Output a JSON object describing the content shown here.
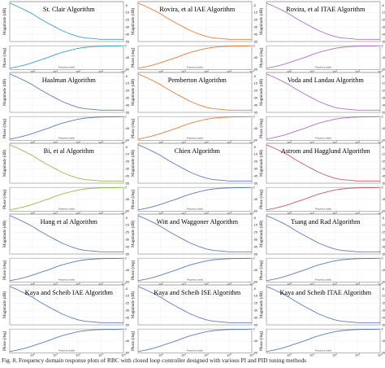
{
  "caption": "Fig. 8. Frequency domain response plots of RBC with closed loop controller designed with various PI and PID tuning methods",
  "common": {
    "mag_ylabel": "Magnitude (dB)",
    "phase_ylabel": "Phase (deg)",
    "xlabel": "Frequency (rad/s)"
  },
  "chart_data": [
    {
      "type": "line",
      "title": "St. Clair Algorithm",
      "color": "#3aa0d8",
      "x": [
        0.1,
        0.2,
        0.5,
        1,
        2,
        5,
        10,
        20,
        50,
        100,
        200,
        500,
        1000,
        2000,
        5000,
        10000
      ],
      "mag_db": [
        -2,
        -6,
        -12,
        -17,
        -23,
        -30,
        -35,
        -40,
        -45,
        -48,
        -50,
        -51,
        -52,
        -52,
        -52,
        -52
      ],
      "phase_deg": [
        -85,
        -80,
        -72,
        -64,
        -55,
        -44,
        -34,
        -25,
        -16,
        -10,
        -6,
        -3,
        -2,
        -1,
        -1,
        0
      ],
      "mag_ylim": [
        -55,
        0
      ],
      "phase_ylim": [
        -90,
        0
      ],
      "xlim": [
        0.1,
        10000
      ]
    },
    {
      "type": "line",
      "title": "Rovira, et al IAE Algorithm",
      "color": "#f07a3a",
      "x": [
        0.1,
        0.2,
        0.5,
        1,
        2,
        5,
        10,
        20,
        50,
        100,
        200,
        500,
        1000,
        2000,
        5000,
        10000
      ],
      "mag_db": [
        -2,
        -6,
        -12,
        -17,
        -23,
        -30,
        -35,
        -40,
        -45,
        -48,
        -50,
        -51,
        -52,
        -52,
        -52,
        -52
      ],
      "phase_deg": [
        -85,
        -80,
        -72,
        -64,
        -55,
        -44,
        -34,
        -25,
        -16,
        -10,
        -6,
        -3,
        -2,
        -1,
        -1,
        0
      ],
      "mag_ylim": [
        -55,
        0
      ],
      "phase_ylim": [
        -90,
        0
      ],
      "xlim": [
        0.1,
        10000
      ]
    },
    {
      "type": "line",
      "title": "Rovira, et al ITAE Algorithm",
      "color": "#b070c8",
      "x": [
        0.1,
        0.2,
        0.5,
        1,
        2,
        5,
        10,
        20,
        50,
        100,
        200,
        500,
        1000,
        2000,
        5000,
        10000
      ],
      "mag_db": [
        -2,
        -6,
        -12,
        -17,
        -23,
        -30,
        -35,
        -40,
        -45,
        -48,
        -50,
        -51,
        -52,
        -52,
        -52,
        -52
      ],
      "phase_deg": [
        -85,
        -80,
        -72,
        -64,
        -55,
        -44,
        -34,
        -25,
        -16,
        -10,
        -6,
        -3,
        -2,
        -1,
        -1,
        0
      ],
      "mag_ylim": [
        -55,
        0
      ],
      "phase_ylim": [
        -90,
        0
      ],
      "xlim": [
        0.1,
        10000
      ]
    },
    {
      "type": "line",
      "title": "Haalman Algorithm",
      "color": "#5a7cc0",
      "x": [
        0.1,
        0.2,
        0.5,
        1,
        2,
        5,
        10,
        20,
        50,
        100,
        200,
        500,
        1000,
        2000,
        5000,
        10000
      ],
      "mag_db": [
        -2,
        -6,
        -12,
        -17,
        -23,
        -30,
        -35,
        -40,
        -45,
        -48,
        -50,
        -51,
        -52,
        -52,
        -52,
        -52
      ],
      "phase_deg": [
        -85,
        -80,
        -72,
        -64,
        -55,
        -44,
        -34,
        -25,
        -16,
        -10,
        -6,
        -3,
        -2,
        -1,
        -1,
        0
      ],
      "mag_ylim": [
        -55,
        0
      ],
      "phase_ylim": [
        -90,
        0
      ],
      "xlim": [
        0.1,
        10000
      ]
    },
    {
      "type": "line",
      "title": "Pemberton Algorithm",
      "color": "#f07a3a",
      "x": [
        0.1,
        0.2,
        0.5,
        1,
        2,
        5,
        10,
        20,
        50,
        100,
        200,
        500,
        1000,
        2000,
        5000,
        10000
      ],
      "mag_db": [
        -2,
        -6,
        -12,
        -17,
        -23,
        -30,
        -35,
        -40,
        -45,
        -48,
        -50,
        -51,
        -52,
        -52,
        -52,
        -52
      ],
      "phase_deg": [
        -85,
        -80,
        -72,
        -64,
        -55,
        -44,
        -34,
        -25,
        -16,
        -10,
        -6,
        -3,
        -2,
        -1,
        -1,
        0
      ],
      "mag_ylim": [
        -55,
        0
      ],
      "phase_ylim": [
        -90,
        0
      ],
      "xlim": [
        0.1,
        10000
      ]
    },
    {
      "type": "line",
      "title": "Voda and Landau Algorithm",
      "color": "#b070c8",
      "x": [
        0.1,
        0.2,
        0.5,
        1,
        2,
        5,
        10,
        20,
        50,
        100,
        200,
        500,
        1000,
        2000,
        5000,
        10000
      ],
      "mag_db": [
        -2,
        -6,
        -12,
        -17,
        -23,
        -30,
        -35,
        -40,
        -45,
        -48,
        -50,
        -51,
        -52,
        -52,
        -52,
        -52
      ],
      "phase_deg": [
        -85,
        -80,
        -72,
        -64,
        -55,
        -44,
        -34,
        -25,
        -16,
        -10,
        -6,
        -3,
        -2,
        -1,
        -1,
        0
      ],
      "mag_ylim": [
        -55,
        0
      ],
      "phase_ylim": [
        -90,
        0
      ],
      "xlim": [
        0.1,
        10000
      ]
    },
    {
      "type": "line",
      "title": "Bi, et al Algorithm",
      "color": "#8cc24a",
      "x": [
        0.1,
        0.2,
        0.5,
        1,
        2,
        5,
        10,
        20,
        50,
        100,
        200,
        500,
        1000,
        2000,
        5000,
        10000
      ],
      "mag_db": [
        -2,
        -6,
        -12,
        -17,
        -23,
        -30,
        -35,
        -40,
        -45,
        -48,
        -50,
        -51,
        -52,
        -52,
        -52,
        -52
      ],
      "phase_deg": [
        -85,
        -80,
        -72,
        -64,
        -55,
        -44,
        -34,
        -25,
        -16,
        -10,
        -6,
        -3,
        -2,
        -1,
        -1,
        0
      ],
      "mag_ylim": [
        -55,
        0
      ],
      "phase_ylim": [
        -90,
        0
      ],
      "xlim": [
        0.1,
        10000
      ]
    },
    {
      "type": "line",
      "title": "Chien Algorithm",
      "color": "#5a7cc0",
      "x": [
        0.1,
        0.2,
        0.5,
        1,
        2,
        5,
        10,
        20,
        50,
        100,
        200,
        500,
        1000,
        2000,
        5000,
        10000
      ],
      "mag_db": [
        -2,
        -6,
        -12,
        -17,
        -23,
        -30,
        -35,
        -40,
        -45,
        -48,
        -50,
        -51,
        -52,
        -52,
        -52,
        -52
      ],
      "phase_deg": [
        -85,
        -80,
        -72,
        -64,
        -55,
        -44,
        -34,
        -25,
        -16,
        -10,
        -6,
        -3,
        -2,
        -1,
        -1,
        0
      ],
      "mag_ylim": [
        -55,
        0
      ],
      "phase_ylim": [
        -90,
        0
      ],
      "xlim": [
        0.1,
        10000
      ]
    },
    {
      "type": "line",
      "title": "Astrom and  Hagglund Algorithm",
      "color": "#c85a6a",
      "x": [
        0.1,
        0.2,
        0.5,
        1,
        2,
        5,
        10,
        20,
        50,
        100,
        200,
        500,
        1000,
        2000,
        5000,
        10000
      ],
      "mag_db": [
        -2,
        -6,
        -12,
        -17,
        -23,
        -30,
        -35,
        -40,
        -45,
        -48,
        -50,
        -51,
        -52,
        -52,
        -52,
        -52
      ],
      "phase_deg": [
        -85,
        -80,
        -72,
        -64,
        -55,
        -44,
        -34,
        -25,
        -16,
        -10,
        -6,
        -3,
        -2,
        -1,
        -1,
        0
      ],
      "mag_ylim": [
        -55,
        0
      ],
      "phase_ylim": [
        -90,
        0
      ],
      "xlim": [
        0.1,
        10000
      ]
    },
    {
      "type": "line",
      "title": "Hang et al Algorithm",
      "color": "#5a7cc0",
      "x": [
        0.1,
        0.2,
        0.5,
        1,
        2,
        5,
        10,
        20,
        50,
        100,
        200,
        500,
        1000,
        2000,
        5000,
        10000
      ],
      "mag_db": [
        -2,
        -6,
        -12,
        -17,
        -23,
        -30,
        -35,
        -40,
        -45,
        -48,
        -50,
        -51,
        -52,
        -52,
        -52,
        -52
      ],
      "phase_deg": [
        -85,
        -80,
        -72,
        -64,
        -55,
        -44,
        -34,
        -25,
        -16,
        -10,
        -6,
        -3,
        -2,
        -1,
        -1,
        0
      ],
      "mag_ylim": [
        -55,
        0
      ],
      "phase_ylim": [
        -90,
        0
      ],
      "xlim": [
        0.1,
        10000
      ]
    },
    {
      "type": "line",
      "title": "Witt and Waggoner Algorithm",
      "color": "#5a7cc0",
      "x": [
        0.1,
        0.2,
        0.5,
        1,
        2,
        5,
        10,
        20,
        50,
        100,
        200,
        500,
        1000,
        2000,
        5000,
        10000
      ],
      "mag_db": [
        -2,
        -6,
        -12,
        -17,
        -23,
        -30,
        -35,
        -40,
        -45,
        -48,
        -50,
        -51,
        -52,
        -52,
        -52,
        -52
      ],
      "phase_deg": [
        -85,
        -80,
        -72,
        -64,
        -55,
        -44,
        -34,
        -25,
        -16,
        -10,
        -6,
        -3,
        -2,
        -1,
        -1,
        0
      ],
      "mag_ylim": [
        -55,
        0
      ],
      "phase_ylim": [
        -90,
        0
      ],
      "xlim": [
        0.1,
        10000
      ]
    },
    {
      "type": "line",
      "title": "Tsang and Rad Algorithm",
      "color": "#5a7cc0",
      "x": [
        0.1,
        0.2,
        0.5,
        1,
        2,
        5,
        10,
        20,
        50,
        100,
        200,
        500,
        1000,
        2000,
        5000,
        10000
      ],
      "mag_db": [
        -2,
        -6,
        -12,
        -17,
        -23,
        -30,
        -35,
        -40,
        -45,
        -48,
        -50,
        -51,
        -52,
        -52,
        -52,
        -52
      ],
      "phase_deg": [
        -85,
        -80,
        -72,
        -64,
        -55,
        -44,
        -34,
        -25,
        -16,
        -10,
        -6,
        -3,
        -2,
        -1,
        -1,
        0
      ],
      "mag_ylim": [
        -55,
        0
      ],
      "phase_ylim": [
        -90,
        0
      ],
      "xlim": [
        0.1,
        10000
      ]
    },
    {
      "type": "line",
      "title": "Kaya and Scheib  IAE Algorithm",
      "color": "#5a7cc0",
      "x": [
        0.1,
        0.2,
        0.5,
        1,
        2,
        5,
        10,
        20,
        50,
        100,
        200,
        500,
        1000,
        2000,
        5000,
        10000
      ],
      "mag_db": [
        -2,
        -6,
        -12,
        -17,
        -23,
        -30,
        -35,
        -40,
        -45,
        -48,
        -50,
        -51,
        -52,
        -52,
        -52,
        -52
      ],
      "phase_deg": [
        -85,
        -80,
        -72,
        -64,
        -55,
        -44,
        -34,
        -25,
        -16,
        -10,
        -6,
        -3,
        -2,
        -1,
        -1,
        0
      ],
      "mag_ylim": [
        -55,
        0
      ],
      "phase_ylim": [
        -90,
        0
      ],
      "xlim": [
        0.1,
        10000
      ]
    },
    {
      "type": "line",
      "title": "Kaya and Scheib  ISE Algorithm",
      "color": "#5a7cc0",
      "x": [
        0.1,
        0.2,
        0.5,
        1,
        2,
        5,
        10,
        20,
        50,
        100,
        200,
        500,
        1000,
        2000,
        5000,
        10000
      ],
      "mag_db": [
        -2,
        -6,
        -12,
        -17,
        -23,
        -30,
        -35,
        -40,
        -45,
        -48,
        -50,
        -51,
        -52,
        -52,
        -52,
        -52
      ],
      "phase_deg": [
        -85,
        -80,
        -72,
        -64,
        -55,
        -44,
        -34,
        -25,
        -16,
        -10,
        -6,
        -3,
        -2,
        -1,
        -1,
        0
      ],
      "mag_ylim": [
        -55,
        0
      ],
      "phase_ylim": [
        -90,
        0
      ],
      "xlim": [
        0.1,
        10000
      ]
    },
    {
      "type": "line",
      "title": "Kaya and Scheib  ITAE Algorithm",
      "color": "#5a7cc0",
      "x": [
        0.1,
        0.2,
        0.5,
        1,
        2,
        5,
        10,
        20,
        50,
        100,
        200,
        500,
        1000,
        2000,
        5000,
        10000
      ],
      "mag_db": [
        -2,
        -6,
        -12,
        -17,
        -23,
        -30,
        -35,
        -40,
        -45,
        -48,
        -50,
        -51,
        -52,
        -52,
        -52,
        -52
      ],
      "phase_deg": [
        -85,
        -80,
        -72,
        -64,
        -55,
        -44,
        -34,
        -25,
        -16,
        -10,
        -6,
        -3,
        -2,
        -1,
        -1,
        0
      ],
      "mag_ylim": [
        -55,
        0
      ],
      "phase_ylim": [
        -90,
        0
      ],
      "xlim": [
        0.1,
        10000
      ]
    }
  ]
}
